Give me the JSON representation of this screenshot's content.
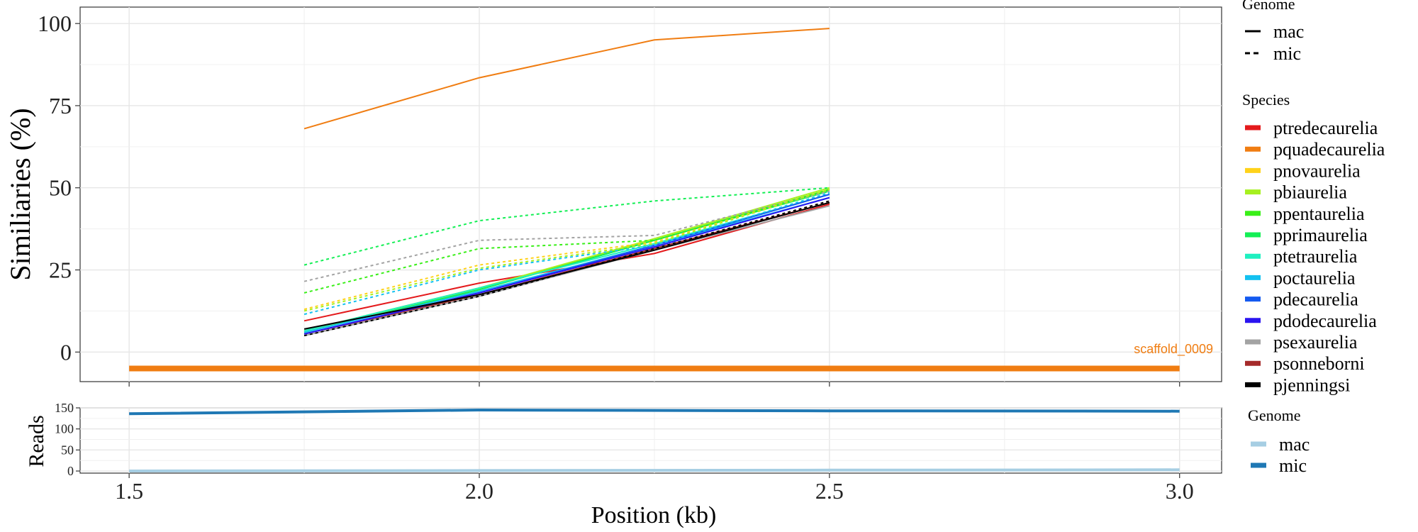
{
  "chart_data": [
    {
      "type": "line",
      "panel": "top",
      "ylabel": "Similiaries (%)",
      "ylim": [
        -9,
        105
      ],
      "xlim": [
        1.43,
        3.06
      ],
      "yticks": [
        0,
        25,
        50,
        75,
        100
      ],
      "xticks": [
        1.5,
        2.0,
        2.5,
        3.0
      ],
      "grid": true,
      "colors": {
        "ptredecaurelia": "#e41a1c",
        "pquadecaurelia": "#f07d12",
        "pnovaurelia": "#ffd21a",
        "pbiaurelia": "#a6f01f",
        "ppentaurelia": "#39ef18",
        "pprimaurelia": "#14ef55",
        "ptetraurelia": "#1ff0c0",
        "poctaurelia": "#14c1f0",
        "pdecaurelia": "#145af0",
        "pdodecaurelia": "#2a14f0",
        "psexaurelia": "#a3a3a3",
        "psonneborni": "#a52a2a",
        "pjenningsi": "#000000"
      },
      "series": [
        {
          "species": "pquadecaurelia",
          "genome": "mac",
          "x": [
            1.75,
            2.0,
            2.25,
            2.5
          ],
          "y": [
            68,
            83.5,
            95,
            98.5
          ]
        },
        {
          "species": "ptredecaurelia",
          "genome": "mac",
          "x": [
            1.75,
            2.0,
            2.25,
            2.5
          ],
          "y": [
            9.5,
            21,
            30,
            45
          ]
        },
        {
          "species": "psexaurelia",
          "genome": "mac",
          "x": [
            1.75,
            2.0,
            2.25,
            2.5
          ],
          "y": [
            5,
            17,
            31,
            44.5
          ]
        },
        {
          "species": "psonneborni",
          "genome": "mac",
          "x": [
            1.75,
            2.0,
            2.25,
            2.5
          ],
          "y": [
            5.5,
            17.5,
            31.5,
            45.5
          ]
        },
        {
          "species": "pnovaurelia",
          "genome": "mac",
          "x": [
            1.75,
            2.0,
            2.25,
            2.5
          ],
          "y": [
            6.5,
            19.5,
            34,
            49.5
          ]
        },
        {
          "species": "pbiaurelia",
          "genome": "mac",
          "x": [
            1.75,
            2.0,
            2.25,
            2.5
          ],
          "y": [
            6.5,
            19.5,
            34.5,
            50
          ]
        },
        {
          "species": "ppentaurelia",
          "genome": "mac",
          "x": [
            1.75,
            2.0,
            2.25,
            2.5
          ],
          "y": [
            6,
            19,
            34,
            49.5
          ]
        },
        {
          "species": "pprimaurelia",
          "genome": "mac",
          "x": [
            1.75,
            2.0,
            2.25,
            2.5
          ],
          "y": [
            6,
            19,
            34,
            49
          ]
        },
        {
          "species": "ptetraurelia",
          "genome": "mac",
          "x": [
            1.75,
            2.0,
            2.25,
            2.5
          ],
          "y": [
            6.5,
            19.5,
            33,
            48
          ]
        },
        {
          "species": "poctaurelia",
          "genome": "mac",
          "x": [
            1.75,
            2.0,
            2.25,
            2.5
          ],
          "y": [
            6,
            18.5,
            32.5,
            47
          ]
        },
        {
          "species": "pdecaurelia",
          "genome": "mac",
          "x": [
            1.75,
            2.0,
            2.25,
            2.5
          ],
          "y": [
            5.5,
            18,
            32.5,
            48
          ]
        },
        {
          "species": "pdodecaurelia",
          "genome": "mac",
          "x": [
            1.75,
            2.0,
            2.25,
            2.5
          ],
          "y": [
            5.5,
            18,
            32,
            47
          ]
        },
        {
          "species": "pjenningsi",
          "genome": "mac",
          "x": [
            1.75,
            2.0,
            2.25,
            2.5
          ],
          "y": [
            7,
            17.5,
            31,
            45.5
          ]
        },
        {
          "species": "pprimaurelia",
          "genome": "mic",
          "x": [
            1.75,
            2.0,
            2.25,
            2.5
          ],
          "y": [
            26.5,
            40,
            46,
            50
          ]
        },
        {
          "species": "psexaurelia",
          "genome": "mic",
          "x": [
            1.75,
            2.0,
            2.25,
            2.5
          ],
          "y": [
            21.5,
            34,
            35.5,
            49
          ]
        },
        {
          "species": "ppentaurelia",
          "genome": "mic",
          "x": [
            1.75,
            2.0,
            2.25,
            2.5
          ],
          "y": [
            18,
            31.5,
            34,
            49.5
          ]
        },
        {
          "species": "pnovaurelia",
          "genome": "mic",
          "x": [
            1.75,
            2.0,
            2.25,
            2.5
          ],
          "y": [
            13,
            26.5,
            33.5,
            49.5
          ]
        },
        {
          "species": "pbiaurelia",
          "genome": "mic",
          "x": [
            1.75,
            2.0,
            2.25,
            2.5
          ],
          "y": [
            12.5,
            25.5,
            33,
            49.5
          ]
        },
        {
          "species": "poctaurelia",
          "genome": "mic",
          "x": [
            1.75,
            2.0,
            2.25,
            2.5
          ],
          "y": [
            11.5,
            25,
            32.5,
            48.5
          ]
        },
        {
          "species": "pjenningsi",
          "genome": "mic",
          "x": [
            1.75,
            2.0,
            2.25,
            2.5
          ],
          "y": [
            5,
            17,
            31.5,
            46
          ]
        }
      ],
      "scaffold": {
        "label": "scaffold_0009",
        "x": [
          1.5,
          3.0
        ],
        "y": -5,
        "color": "#f07d12"
      },
      "legend": {
        "placement": "right",
        "genome_title": "Genome",
        "genome_items": [
          {
            "label": "mac",
            "style": "solid"
          },
          {
            "label": "mic",
            "style": "dashed"
          }
        ],
        "species_title": "Species",
        "species_items": [
          "ptredecaurelia",
          "pquadecaurelia",
          "pnovaurelia",
          "pbiaurelia",
          "ppentaurelia",
          "pprimaurelia",
          "ptetraurelia",
          "poctaurelia",
          "pdecaurelia",
          "pdodecaurelia",
          "psexaurelia",
          "psonneborni",
          "pjenningsi"
        ]
      }
    },
    {
      "type": "line",
      "panel": "bottom",
      "ylabel": "Reads",
      "xlabel": "Position (kb)",
      "ylim": [
        -5,
        150
      ],
      "xlim": [
        1.43,
        3.06
      ],
      "yticks": [
        0,
        50,
        100,
        150
      ],
      "xticks": [
        1.5,
        2.0,
        2.5,
        3.0
      ],
      "grid": true,
      "series": [
        {
          "name": "mac",
          "color": "#a6cee3",
          "x": [
            1.5,
            2.0,
            2.5,
            3.0
          ],
          "y": [
            0,
            1,
            2,
            3
          ]
        },
        {
          "name": "mic",
          "color": "#1f78b4",
          "x": [
            1.5,
            2.0,
            2.5,
            3.0
          ],
          "y": [
            136,
            145,
            143,
            142
          ]
        }
      ],
      "legend": {
        "placement": "right",
        "title": "Genome",
        "items": [
          "mac",
          "mic"
        ]
      }
    }
  ]
}
